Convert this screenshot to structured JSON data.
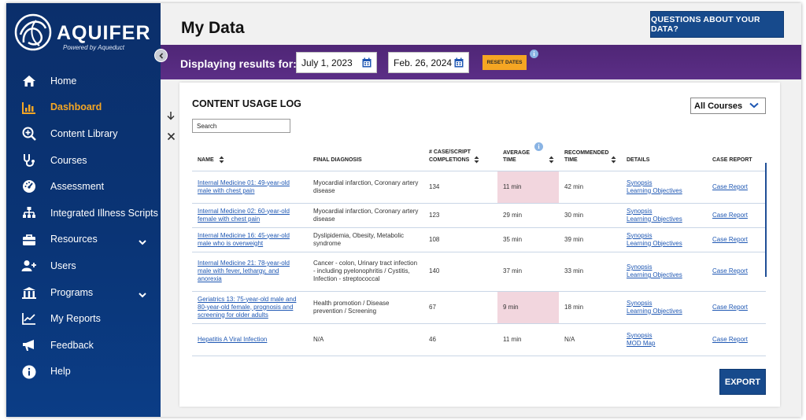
{
  "brand": {
    "name": "AQUIFER",
    "tagline": "Powered by Aqueduct"
  },
  "sidebar": {
    "items": [
      {
        "label": "Home",
        "icon": "home-icon"
      },
      {
        "label": "Dashboard",
        "icon": "bar-chart-icon",
        "active": true
      },
      {
        "label": "Content Library",
        "icon": "magnify-plus-icon"
      },
      {
        "label": "Courses",
        "icon": "stethoscope-icon"
      },
      {
        "label": "Assessment",
        "icon": "gauge-icon"
      },
      {
        "label": "Integrated Illness Scripts",
        "icon": "hierarchy-icon"
      },
      {
        "label": "Resources",
        "icon": "briefcase-icon",
        "expandable": true
      },
      {
        "label": "Users",
        "icon": "user-plus-icon"
      },
      {
        "label": "Programs",
        "icon": "building-icon",
        "expandable": true
      },
      {
        "label": "My Reports",
        "icon": "line-chart-icon"
      },
      {
        "label": "Feedback",
        "icon": "megaphone-icon"
      },
      {
        "label": "Help",
        "icon": "info-circle-icon"
      }
    ],
    "active_color": "#f5a623"
  },
  "header": {
    "title": "My Data",
    "questions_button": "QUESTIONS ABOUT YOUR DATA?"
  },
  "filter": {
    "label": "Displaying results for:",
    "start_date": "July 1, 2023",
    "end_date": "Feb. 26, 2024",
    "reset_button": "RESET DATES",
    "info": "i"
  },
  "card": {
    "title": "CONTENT USAGE LOG",
    "search_placeholder": "Search",
    "course_filter": "All Courses",
    "export_button": "EXPORT",
    "columns": {
      "name": "NAME",
      "diagnosis": "FINAL DIAGNOSIS",
      "completions_line1": "# CASE/SCRIPT",
      "completions_line2": "COMPLETIONS",
      "avg_line1": "AVERAGE",
      "avg_line2": "TIME",
      "rec_line1": "RECOMMENDED",
      "rec_line2": "TIME",
      "details": "DETAILS",
      "report": "CASE REPORT"
    },
    "rows": [
      {
        "name": "Internal Medicine 01: 49-year-old male with chest pain",
        "diagnosis": "Myocardial infarction, Coronary artery disease",
        "completions": "134",
        "avg": "11 min",
        "rec": "42 min",
        "detail1": "Synopsis",
        "detail2": "Learning Objectives",
        "report": "Case Report",
        "highlight": true
      },
      {
        "name": "Internal Medicine 02: 60-year-old female with chest pain",
        "diagnosis": "Myocardial infarction, Coronary artery disease",
        "completions": "123",
        "avg": "29 min",
        "rec": "30 min",
        "detail1": "Synopsis",
        "detail2": "Learning Objectives",
        "report": "Case Report",
        "highlight": false
      },
      {
        "name": "Internal Medicine 16: 45-year-old male who is overweight",
        "diagnosis": "Dyslipidemia, Obesity, Metabolic syndrome",
        "completions": "108",
        "avg": "35 min",
        "rec": "39 min",
        "detail1": "Synopsis",
        "detail2": "Learning Objectives",
        "report": "Case Report",
        "highlight": false
      },
      {
        "name": "Internal Medicine 21: 78-year-old male with fever, lethargy, and anorexia",
        "diagnosis": "Cancer - colon, Urinary tract infection - including pyelonophritis / Cystitis, Infection - streptococcal",
        "completions": "140",
        "avg": "37 min",
        "rec": "33 min",
        "detail1": "Synopsis",
        "detail2": "Learning Objectives",
        "report": "Case Report",
        "highlight": false
      },
      {
        "name": "Geriatrics 13: 75-year-old male and 80-year-old female, prognosis and screening for older adults",
        "diagnosis": "Health promotion / Disease prevention / Screening",
        "completions": "67",
        "avg": "9 min",
        "rec": "18 min",
        "detail1": "Synopsis",
        "detail2": "Learning Objectives",
        "report": "Case Report",
        "highlight": true
      },
      {
        "name": "Hepatitis A Viral Infection",
        "diagnosis": "N/A",
        "completions": "46",
        "avg": "11 min",
        "rec": "N/A",
        "detail1": "Synopsis",
        "detail2": "MOD Map",
        "report": "Case Report",
        "highlight": false
      }
    ]
  }
}
